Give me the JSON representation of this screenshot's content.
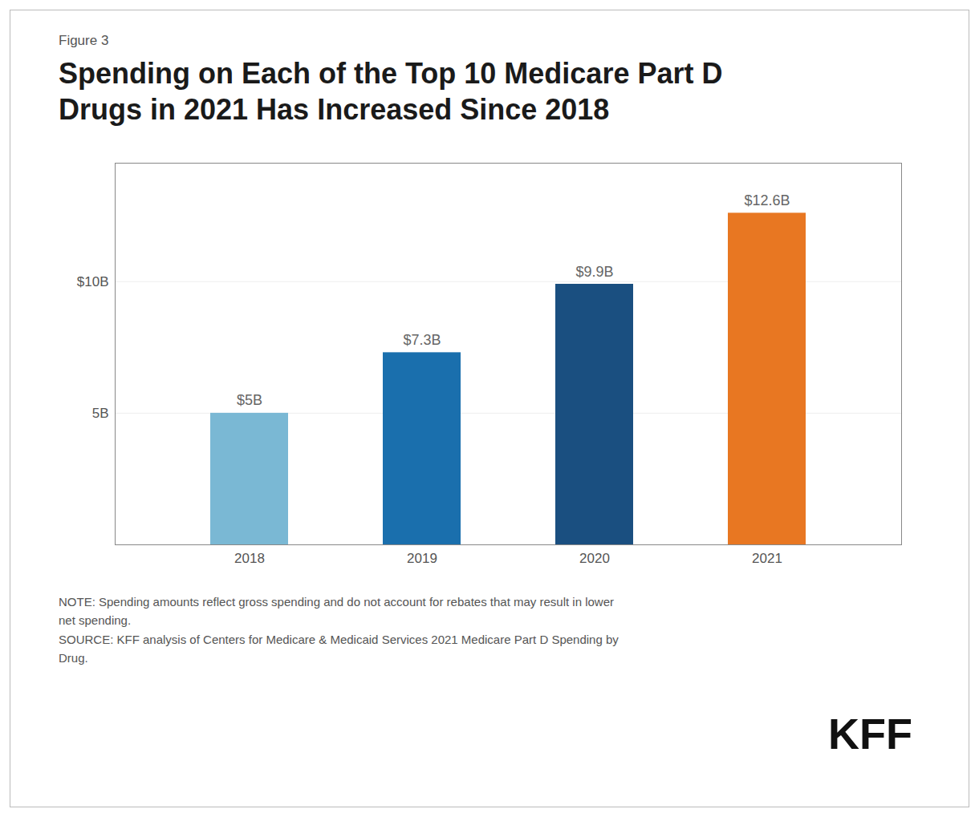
{
  "chart_data": {
    "type": "bar",
    "subtitle": "Figure 3",
    "title": "Spending on Each of the Top 10 Medicare Part D\nDrugs in 2021 Has Increased Since 2018",
    "categories": [
      "2018",
      "2019",
      "2020",
      "2021"
    ],
    "values": [
      5.0,
      7.3,
      9.9,
      12.6
    ],
    "value_labels": [
      "$5B",
      "$7.3B",
      "$9.9B",
      "$12.6B"
    ],
    "data_labels": true,
    "colors": [
      "#7ab8d4",
      "#1a6fad",
      "#1a4f80",
      "#e87722"
    ],
    "ylim": [
      0,
      14.5
    ],
    "yticks": [
      {
        "value": 5,
        "label": "5B"
      },
      {
        "value": 10,
        "label": "$10B"
      }
    ],
    "grid": true,
    "annotations": [
      "NOTE: Spending amounts reflect gross spending and do not account for rebates that may result in lower\nnet spending.\nSOURCE: KFF analysis of Centers for Medicare & Medicaid Services 2021 Medicare Part D Spending by\nDrug.",
      "KFF"
    ]
  }
}
